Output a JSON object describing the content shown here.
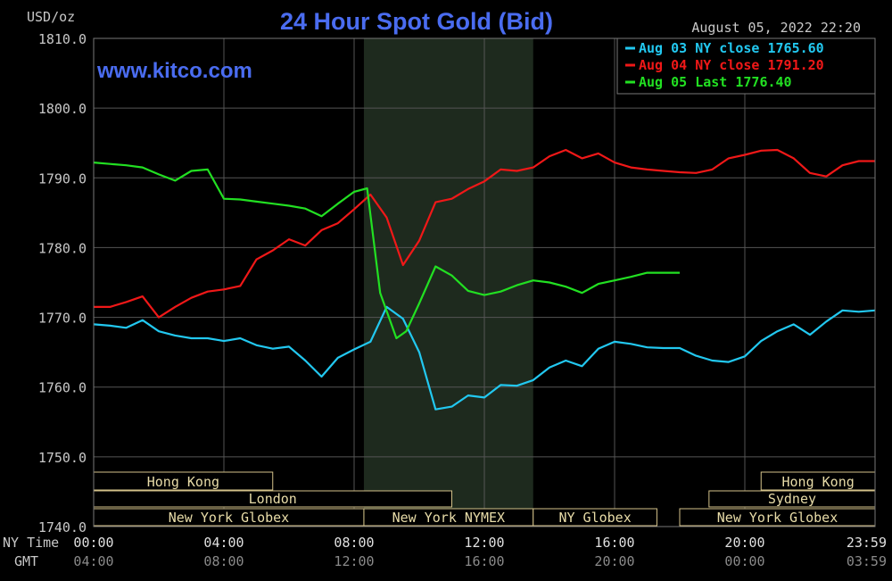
{
  "header": {
    "unit": "USD/oz",
    "title": "24 Hour Spot Gold (Bid)",
    "datetime": "August 05, 2022 22:20",
    "watermark": "www.kitco.com"
  },
  "legend": [
    {
      "text": "Aug 03 NY close 1765.60",
      "color": "#22c8f0"
    },
    {
      "text": "Aug 04 NY close 1791.20",
      "color": "#f01818"
    },
    {
      "text": "Aug 05 Last 1776.40",
      "color": "#22e022"
    }
  ],
  "axes": {
    "row_label_ny": "NY Time",
    "row_label_gmt": "GMT",
    "x_ticks_ny": [
      "00:00",
      "04:00",
      "08:00",
      "12:00",
      "16:00",
      "20:00",
      "23:59"
    ],
    "x_ticks_gmt": [
      "04:00",
      "08:00",
      "12:00",
      "16:00",
      "20:00",
      "00:00",
      "03:59"
    ],
    "y_ticks": [
      "1810.0",
      "1800.0",
      "1790.0",
      "1780.0",
      "1770.0",
      "1760.0",
      "1750.0",
      "1740.0"
    ]
  },
  "sessions": {
    "row1": [
      {
        "label": "Hong Kong",
        "start": 0,
        "end": 5.5
      },
      {
        "label": "Hong Kong",
        "start": 20.5,
        "end": 24
      }
    ],
    "row2": [
      {
        "label": "London",
        "start": 0,
        "end": 11.0
      },
      {
        "label": "Sydney",
        "start": 18.9,
        "end": 24
      }
    ],
    "row3": [
      {
        "label": "New York Globex",
        "start": 0,
        "end": 8.3
      },
      {
        "label": "New York NYMEX",
        "start": 8.3,
        "end": 13.5
      },
      {
        "label": "NY Globex",
        "start": 13.5,
        "end": 17.3
      },
      {
        "label": "New York Globex",
        "start": 18.0,
        "end": 24
      }
    ]
  },
  "chart_data": {
    "type": "line",
    "title": "24 Hour Spot Gold (Bid)",
    "ylabel": "USD/oz",
    "xlabel": "NY Time",
    "xlim": [
      0,
      24
    ],
    "ylim": [
      1740,
      1810
    ],
    "grid": true,
    "shaded_range": [
      8.3,
      13.5
    ],
    "series": [
      {
        "name": "Aug 03 NY close 1765.60",
        "color": "#22c8f0",
        "x": [
          0,
          0.5,
          1,
          1.5,
          2,
          2.5,
          3,
          3.5,
          4,
          4.5,
          5,
          5.5,
          6,
          6.5,
          7,
          7.5,
          8,
          8.5,
          9,
          9.5,
          10,
          10.5,
          11,
          11.5,
          12,
          12.5,
          13,
          13.5,
          14,
          14.5,
          15,
          15.5,
          16,
          16.5,
          17,
          17.5,
          18,
          18.5,
          19,
          19.5,
          20,
          20.5,
          21,
          21.5,
          22,
          22.5,
          23,
          23.5,
          24
        ],
        "y": [
          1769.0,
          1768.8,
          1768.5,
          1769.6,
          1768.0,
          1767.4,
          1767.0,
          1767.0,
          1766.6,
          1767.0,
          1766.0,
          1765.5,
          1765.8,
          1763.8,
          1761.5,
          1764.2,
          1765.4,
          1766.5,
          1771.5,
          1769.8,
          1765.0,
          1756.8,
          1757.2,
          1758.8,
          1758.5,
          1760.3,
          1760.2,
          1761.0,
          1762.8,
          1763.8,
          1763.0,
          1765.5,
          1766.5,
          1766.2,
          1765.7,
          1765.6,
          1765.6,
          1764.5,
          1763.8,
          1763.6,
          1764.4,
          1766.6,
          1768.0,
          1769.0,
          1767.5,
          1769.4,
          1771.0,
          1770.8,
          1771.0
        ]
      },
      {
        "name": "Aug 04 NY close 1791.20",
        "color": "#f01818",
        "x": [
          0,
          0.5,
          1,
          1.5,
          2,
          2.5,
          3,
          3.5,
          4,
          4.5,
          5,
          5.5,
          6,
          6.5,
          7,
          7.5,
          8,
          8.5,
          9,
          9.5,
          10,
          10.5,
          11,
          11.5,
          12,
          12.5,
          13,
          13.5,
          14,
          14.5,
          15,
          15.5,
          16,
          16.5,
          17,
          17.5,
          18,
          18.5,
          19,
          19.5,
          20,
          20.5,
          21,
          21.5,
          22,
          22.5,
          23,
          23.5,
          24
        ],
        "y": [
          1771.5,
          1771.5,
          1772.2,
          1773.0,
          1770.0,
          1771.5,
          1772.8,
          1773.7,
          1774.0,
          1774.5,
          1778.3,
          1779.6,
          1781.2,
          1780.3,
          1782.5,
          1783.5,
          1785.5,
          1787.6,
          1784.3,
          1777.5,
          1781.0,
          1786.5,
          1787.0,
          1788.4,
          1789.5,
          1791.2,
          1791.0,
          1791.5,
          1793.1,
          1794.0,
          1792.8,
          1793.5,
          1792.2,
          1791.5,
          1791.2,
          1791.0,
          1790.8,
          1790.7,
          1791.2,
          1792.8,
          1793.3,
          1793.9,
          1794.0,
          1792.8,
          1790.7,
          1790.2,
          1791.8,
          1792.4,
          1792.4
        ]
      },
      {
        "name": "Aug 05 Last 1776.40",
        "color": "#22e022",
        "x": [
          0,
          0.5,
          1,
          1.5,
          2,
          2.5,
          3,
          3.5,
          4,
          4.5,
          5,
          5.5,
          6,
          6.5,
          7,
          7.5,
          8,
          8.4,
          8.8,
          9.3,
          9.6,
          10,
          10.5,
          11,
          11.5,
          12,
          12.5,
          13,
          13.5,
          14,
          14.5,
          15,
          15.5,
          16,
          16.5,
          17,
          17.5,
          18
        ],
        "y": [
          1792.2,
          1792.0,
          1791.8,
          1791.5,
          1790.5,
          1789.6,
          1791.0,
          1791.2,
          1787.0,
          1786.9,
          1786.6,
          1786.3,
          1786.0,
          1785.6,
          1784.5,
          1786.3,
          1788.0,
          1788.5,
          1773.5,
          1767.0,
          1768.0,
          1772.0,
          1777.3,
          1776.0,
          1773.8,
          1773.2,
          1773.7,
          1774.6,
          1775.3,
          1775.0,
          1774.4,
          1773.5,
          1774.8,
          1775.3,
          1775.8,
          1776.4,
          1776.4,
          1776.4
        ]
      }
    ]
  }
}
